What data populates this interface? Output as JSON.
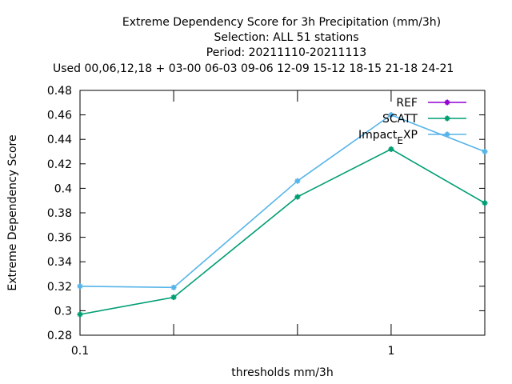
{
  "chart_data": {
    "type": "line",
    "title_lines": [
      "Extreme Dependency Score  for 3h Precipitation (mm/3h)",
      "Selection: ALL     51 stations",
      "Period: 20211110-20211113",
      "Used  00,06,12,18 + 03-00 06-03 09-06 12-09 15-12 18-15 21-18 24-21"
    ],
    "xlabel": "thresholds mm/3h",
    "ylabel": "Extreme Dependency Score",
    "x_scale": "log",
    "xlim": [
      0.1,
      2
    ],
    "ylim": [
      0.28,
      0.48
    ],
    "yticks": [
      "0.28",
      "0.3",
      "0.32",
      "0.34",
      "0.36",
      "0.38",
      "0.4",
      "0.42",
      "0.44",
      "0.46",
      "0.48"
    ],
    "xtick_labels": [
      {
        "value": 0.1,
        "label": "0.1"
      },
      {
        "value": 1,
        "label": "1"
      }
    ],
    "xtick_values": [
      0.1,
      0.2,
      0.5,
      1,
      2
    ],
    "legend_position": "top-right",
    "series": [
      {
        "name": "REF",
        "color": "#9400d3",
        "x": [],
        "y": []
      },
      {
        "name": "SCATT",
        "color": "#009e73",
        "x": [
          0.1,
          0.2,
          0.5,
          1,
          2
        ],
        "y": [
          0.297,
          0.311,
          0.393,
          0.432,
          0.388
        ]
      },
      {
        "name": "Impact_EXP",
        "name_parts": [
          "Impact",
          "E",
          "XP"
        ],
        "color": "#56b4e9",
        "x": [
          0.1,
          0.2,
          0.5,
          1,
          2
        ],
        "y": [
          0.32,
          0.319,
          0.406,
          0.46,
          0.43
        ]
      }
    ]
  }
}
